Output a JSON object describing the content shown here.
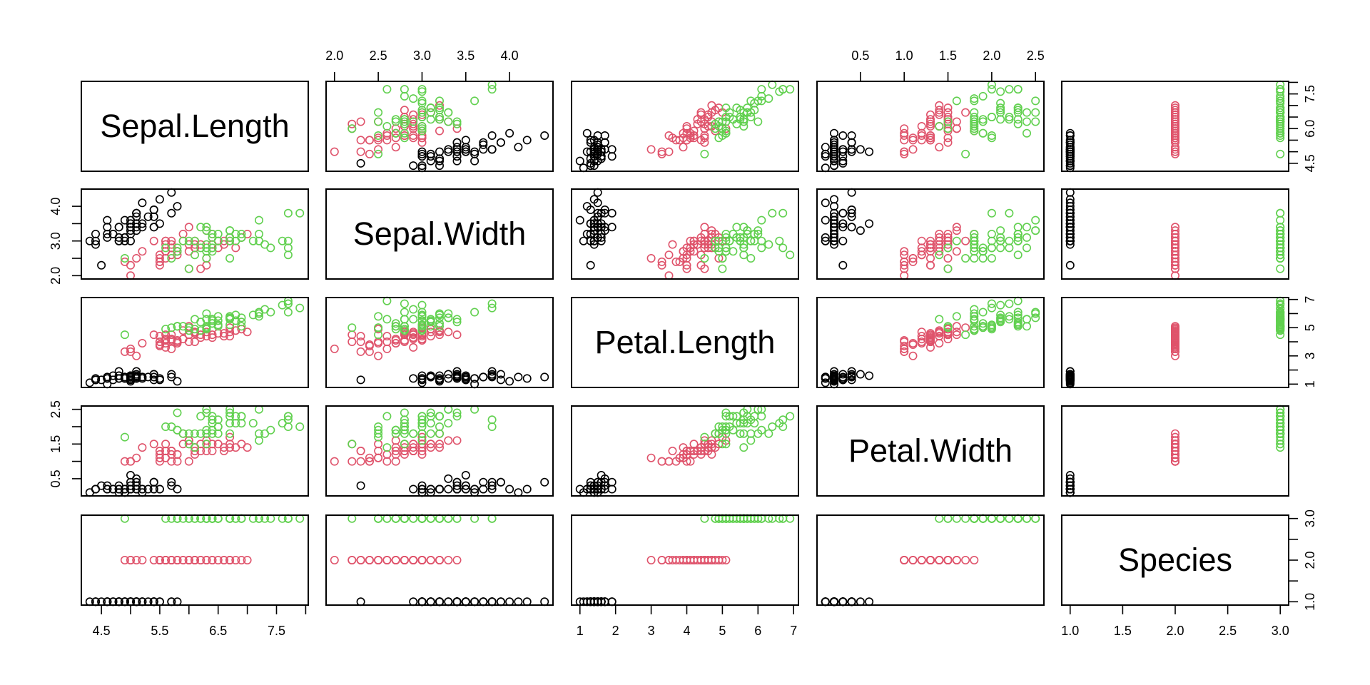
{
  "chart_data": {
    "type": "scatter",
    "subtype": "scatterplot-matrix",
    "title": "",
    "variables": [
      "Sepal.Length",
      "Sepal.Width",
      "Petal.Length",
      "Petal.Width",
      "Species"
    ],
    "color_by": "Species",
    "groups": [
      {
        "code": 1,
        "color": "#000000"
      },
      {
        "code": 2,
        "color": "#DF536B"
      },
      {
        "code": 3,
        "color": "#61D04F"
      }
    ],
    "axes": {
      "Sepal.Length": {
        "range": [
          4.3,
          7.9
        ],
        "ticks": [
          4.5,
          5.0,
          5.5,
          6.0,
          6.5,
          7.0,
          7.5,
          8.0
        ],
        "labels_bottom": [
          "4.5",
          "",
          "5.5",
          "",
          "6.5",
          "",
          "7.5",
          ""
        ],
        "labels_right": [
          "4.5",
          "",
          "",
          "6.0",
          "",
          "",
          "7.5",
          ""
        ]
      },
      "Sepal.Width": {
        "range": [
          2.0,
          4.4
        ],
        "ticks": [
          2.0,
          2.5,
          3.0,
          3.5,
          4.0
        ],
        "labels_top": [
          "2.0",
          "2.5",
          "3.0",
          "3.5",
          "4.0"
        ],
        "labels_left": [
          "2.0",
          "",
          "3.0",
          "",
          "4.0"
        ]
      },
      "Petal.Length": {
        "range": [
          1.0,
          6.9
        ],
        "ticks": [
          1,
          2,
          3,
          4,
          5,
          6,
          7
        ],
        "labels_bottom": [
          "1",
          "2",
          "3",
          "4",
          "5",
          "6",
          "7"
        ],
        "labels_right": [
          "1",
          "",
          "3",
          "",
          "5",
          "",
          "7"
        ]
      },
      "Petal.Width": {
        "range": [
          0.1,
          2.5
        ],
        "ticks": [
          0.5,
          1.0,
          1.5,
          2.0,
          2.5
        ],
        "labels_top": [
          "0.5",
          "1.0",
          "1.5",
          "2.0",
          "2.5"
        ],
        "labels_left": [
          "0.5",
          "",
          "1.5",
          "",
          "2.5"
        ]
      },
      "Species": {
        "range": [
          1,
          3
        ],
        "ticks": [
          1.0,
          1.5,
          2.0,
          2.5,
          3.0
        ],
        "labels_bottom": [
          "1.0",
          "1.5",
          "2.0",
          "2.5",
          "3.0"
        ],
        "labels_right": [
          "1.0",
          "",
          "2.0",
          "",
          "3.0"
        ]
      }
    },
    "data": {
      "Sepal.Length": [
        5.1,
        4.9,
        4.7,
        4.6,
        5.0,
        5.4,
        4.6,
        5.0,
        4.4,
        4.9,
        5.4,
        4.8,
        4.8,
        4.3,
        5.8,
        5.7,
        5.4,
        5.1,
        5.7,
        5.1,
        5.4,
        5.1,
        4.6,
        5.1,
        4.8,
        5.0,
        5.0,
        5.2,
        5.2,
        4.7,
        4.8,
        5.4,
        5.2,
        5.5,
        4.9,
        5.0,
        5.5,
        4.9,
        4.4,
        5.1,
        5.0,
        4.5,
        4.4,
        5.0,
        5.1,
        4.8,
        5.1,
        4.6,
        5.3,
        5.0,
        7.0,
        6.4,
        6.9,
        5.5,
        6.5,
        5.7,
        6.3,
        4.9,
        6.6,
        5.2,
        5.0,
        5.9,
        6.0,
        6.1,
        5.6,
        6.7,
        5.6,
        5.8,
        6.2,
        5.6,
        5.9,
        6.1,
        6.3,
        6.1,
        6.4,
        6.6,
        6.8,
        6.7,
        6.0,
        5.7,
        5.5,
        5.5,
        5.8,
        6.0,
        5.4,
        6.0,
        6.7,
        6.3,
        5.6,
        5.5,
        5.5,
        6.1,
        5.8,
        5.0,
        5.6,
        5.7,
        5.7,
        6.2,
        5.1,
        5.7,
        6.3,
        5.8,
        7.1,
        6.3,
        6.5,
        7.6,
        4.9,
        7.3,
        6.7,
        7.2,
        6.5,
        6.4,
        6.8,
        5.7,
        5.8,
        6.4,
        6.5,
        7.7,
        7.7,
        6.0,
        6.9,
        5.6,
        7.7,
        6.3,
        6.7,
        7.2,
        6.2,
        6.1,
        6.4,
        7.2,
        7.4,
        7.9,
        6.4,
        6.3,
        6.1,
        7.7,
        6.3,
        6.4,
        6.0,
        6.9,
        6.7,
        6.9,
        5.8,
        6.8,
        6.7,
        6.7,
        6.3,
        6.5,
        6.2,
        5.9
      ],
      "Sepal.Width": [
        3.5,
        3.0,
        3.2,
        3.1,
        3.6,
        3.9,
        3.4,
        3.4,
        2.9,
        3.1,
        3.7,
        3.4,
        3.0,
        3.0,
        4.0,
        4.4,
        3.9,
        3.5,
        3.8,
        3.8,
        3.4,
        3.7,
        3.6,
        3.3,
        3.4,
        3.0,
        3.4,
        3.5,
        3.4,
        3.2,
        3.1,
        3.4,
        4.1,
        4.2,
        3.1,
        3.2,
        3.5,
        3.6,
        3.0,
        3.4,
        3.5,
        2.3,
        3.2,
        3.5,
        3.8,
        3.0,
        3.8,
        3.2,
        3.7,
        3.3,
        3.2,
        3.2,
        3.1,
        2.3,
        2.8,
        2.8,
        3.3,
        2.4,
        2.9,
        2.7,
        2.0,
        3.0,
        2.2,
        2.9,
        2.9,
        3.1,
        3.0,
        2.7,
        2.2,
        2.5,
        3.2,
        2.8,
        2.5,
        2.8,
        2.9,
        3.0,
        2.8,
        3.0,
        2.9,
        2.6,
        2.4,
        2.4,
        2.7,
        2.7,
        3.0,
        3.4,
        3.1,
        2.3,
        3.0,
        2.5,
        2.6,
        3.0,
        2.6,
        2.3,
        2.7,
        3.0,
        2.9,
        2.9,
        2.5,
        2.8,
        3.3,
        2.7,
        3.0,
        2.9,
        3.0,
        3.0,
        2.5,
        2.9,
        2.5,
        3.6,
        3.2,
        2.7,
        3.0,
        2.5,
        2.8,
        3.2,
        3.0,
        3.8,
        2.6,
        2.2,
        3.2,
        2.8,
        2.8,
        2.7,
        3.3,
        3.2,
        2.8,
        3.0,
        2.8,
        3.0,
        2.8,
        3.8,
        2.8,
        2.8,
        2.6,
        3.0,
        3.4,
        3.1,
        3.0,
        3.1,
        3.1,
        3.1,
        2.7,
        3.2,
        3.3,
        3.0,
        2.5,
        3.0,
        3.4,
        3.0
      ],
      "Petal.Length": [
        1.4,
        1.4,
        1.3,
        1.5,
        1.4,
        1.7,
        1.4,
        1.5,
        1.4,
        1.5,
        1.5,
        1.6,
        1.4,
        1.1,
        1.2,
        1.5,
        1.3,
        1.4,
        1.7,
        1.5,
        1.7,
        1.5,
        1.0,
        1.7,
        1.9,
        1.6,
        1.6,
        1.5,
        1.4,
        1.6,
        1.6,
        1.5,
        1.5,
        1.4,
        1.5,
        1.2,
        1.3,
        1.4,
        1.3,
        1.5,
        1.3,
        1.3,
        1.3,
        1.6,
        1.9,
        1.4,
        1.6,
        1.4,
        1.5,
        1.4,
        4.7,
        4.5,
        4.9,
        4.0,
        4.6,
        4.5,
        4.7,
        3.3,
        4.6,
        3.9,
        3.5,
        4.2,
        4.0,
        4.7,
        3.6,
        4.4,
        4.5,
        4.1,
        4.5,
        3.9,
        4.8,
        4.0,
        4.9,
        4.7,
        4.3,
        4.4,
        4.8,
        5.0,
        4.5,
        3.5,
        3.8,
        3.7,
        3.9,
        5.1,
        4.5,
        4.5,
        4.7,
        4.4,
        4.1,
        4.0,
        4.4,
        4.6,
        4.0,
        3.3,
        4.2,
        4.2,
        4.2,
        4.3,
        3.0,
        4.1,
        6.0,
        5.1,
        5.9,
        5.6,
        5.8,
        6.6,
        4.5,
        6.3,
        5.8,
        6.1,
        5.1,
        5.3,
        5.5,
        5.0,
        5.1,
        5.3,
        5.5,
        6.7,
        6.9,
        5.0,
        5.7,
        4.9,
        6.7,
        4.9,
        5.7,
        6.0,
        4.8,
        4.9,
        5.6,
        5.8,
        6.1,
        6.4,
        5.6,
        5.1,
        5.6,
        6.1,
        5.6,
        5.5,
        4.8,
        5.4,
        5.6,
        5.1,
        5.1,
        5.9,
        5.7,
        5.2,
        5.0,
        5.2,
        5.4,
        5.1
      ],
      "Petal.Width": [
        0.2,
        0.2,
        0.2,
        0.2,
        0.2,
        0.4,
        0.3,
        0.2,
        0.2,
        0.1,
        0.2,
        0.2,
        0.1,
        0.1,
        0.2,
        0.4,
        0.4,
        0.3,
        0.3,
        0.3,
        0.2,
        0.4,
        0.2,
        0.5,
        0.2,
        0.2,
        0.4,
        0.2,
        0.2,
        0.2,
        0.2,
        0.4,
        0.1,
        0.2,
        0.2,
        0.2,
        0.2,
        0.1,
        0.2,
        0.2,
        0.3,
        0.3,
        0.2,
        0.6,
        0.4,
        0.3,
        0.2,
        0.2,
        0.2,
        0.2,
        1.4,
        1.5,
        1.5,
        1.3,
        1.5,
        1.3,
        1.6,
        1.0,
        1.3,
        1.4,
        1.0,
        1.5,
        1.0,
        1.4,
        1.3,
        1.4,
        1.5,
        1.0,
        1.5,
        1.1,
        1.8,
        1.3,
        1.5,
        1.2,
        1.3,
        1.4,
        1.4,
        1.7,
        1.5,
        1.0,
        1.1,
        1.0,
        1.2,
        1.6,
        1.5,
        1.6,
        1.5,
        1.3,
        1.3,
        1.3,
        1.2,
        1.4,
        1.2,
        1.0,
        1.3,
        1.2,
        1.3,
        1.3,
        1.1,
        1.3,
        2.5,
        1.9,
        2.1,
        1.8,
        2.2,
        2.1,
        1.7,
        1.8,
        1.8,
        2.5,
        2.0,
        1.9,
        2.1,
        2.0,
        2.4,
        2.3,
        1.8,
        2.2,
        2.3,
        1.5,
        2.3,
        2.0,
        2.0,
        1.8,
        2.1,
        1.8,
        1.8,
        1.8,
        2.1,
        1.6,
        1.9,
        2.0,
        2.2,
        1.5,
        1.4,
        2.3,
        2.4,
        1.8,
        1.8,
        2.1,
        2.4,
        2.3,
        1.9,
        2.3,
        2.5,
        2.3,
        1.9,
        2.0,
        2.3,
        1.8
      ],
      "Species": [
        1,
        1,
        1,
        1,
        1,
        1,
        1,
        1,
        1,
        1,
        1,
        1,
        1,
        1,
        1,
        1,
        1,
        1,
        1,
        1,
        1,
        1,
        1,
        1,
        1,
        1,
        1,
        1,
        1,
        1,
        1,
        1,
        1,
        1,
        1,
        1,
        1,
        1,
        1,
        1,
        1,
        1,
        1,
        1,
        1,
        1,
        1,
        1,
        1,
        1,
        2,
        2,
        2,
        2,
        2,
        2,
        2,
        2,
        2,
        2,
        2,
        2,
        2,
        2,
        2,
        2,
        2,
        2,
        2,
        2,
        2,
        2,
        2,
        2,
        2,
        2,
        2,
        2,
        2,
        2,
        2,
        2,
        2,
        2,
        2,
        2,
        2,
        2,
        2,
        2,
        2,
        2,
        2,
        2,
        2,
        2,
        2,
        2,
        2,
        2,
        3,
        3,
        3,
        3,
        3,
        3,
        3,
        3,
        3,
        3,
        3,
        3,
        3,
        3,
        3,
        3,
        3,
        3,
        3,
        3,
        3,
        3,
        3,
        3,
        3,
        3,
        3,
        3,
        3,
        3,
        3,
        3,
        3,
        3,
        3,
        3,
        3,
        3,
        3,
        3,
        3,
        3,
        3,
        3,
        3,
        3,
        3,
        3,
        3,
        3
      ]
    }
  }
}
